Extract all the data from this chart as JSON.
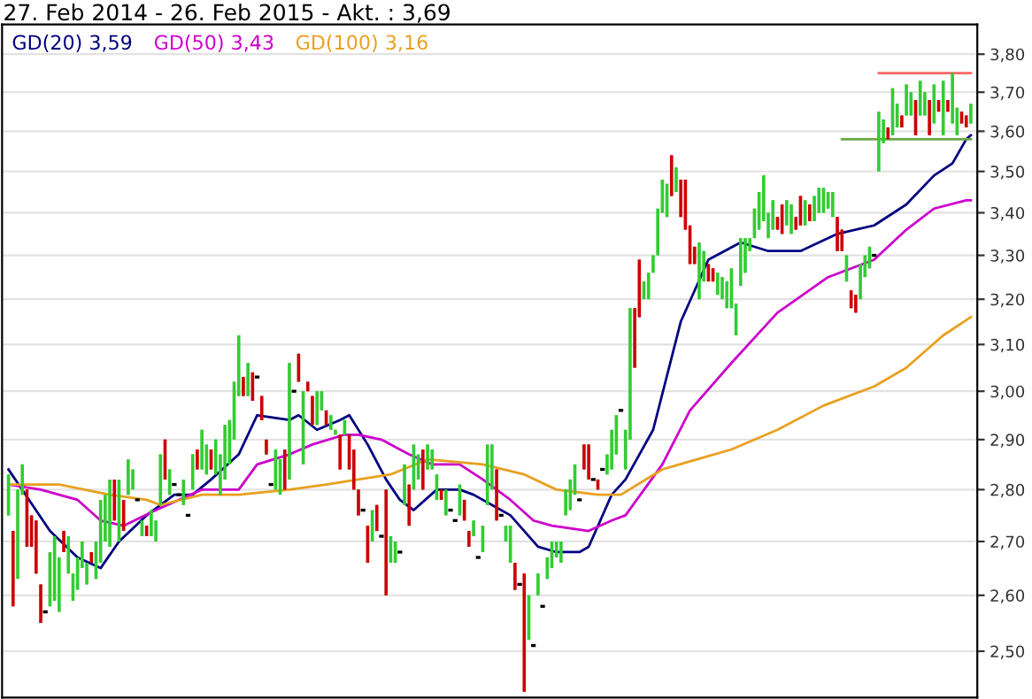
{
  "chart_data": {
    "type": "candlestick",
    "title": "27. Feb 2014 - 26. Feb 2015 - Akt. : 3,69",
    "categories": [
      null,
      null,
      null,
      null,
      null,
      null,
      null,
      null,
      null,
      null,
      null,
      null,
      null,
      null,
      null,
      null,
      null,
      null,
      null,
      null,
      null,
      null,
      null,
      null,
      null,
      null,
      null,
      null,
      null,
      null,
      null,
      null,
      null,
      null,
      null,
      null,
      null,
      null,
      null,
      null,
      null,
      null,
      null,
      null,
      null,
      null,
      null,
      null,
      null,
      null,
      null,
      null,
      null,
      null,
      null,
      null,
      null,
      null,
      null,
      null,
      null,
      null,
      null,
      null,
      null,
      null,
      null,
      null,
      null,
      null,
      null,
      null,
      null,
      null,
      null,
      null,
      null,
      null,
      null,
      null,
      null,
      null,
      null,
      null,
      null,
      null,
      null,
      null,
      null,
      null,
      null,
      null,
      null,
      null,
      null,
      null,
      null,
      null,
      null,
      null,
      null,
      null,
      null,
      null,
      null,
      null,
      null,
      null,
      null,
      null,
      null,
      null,
      null,
      null,
      null,
      null,
      null,
      null,
      null,
      null,
      null,
      null,
      null,
      null,
      null,
      null,
      null,
      null,
      null,
      null,
      null,
      null,
      null,
      null,
      null,
      null,
      null,
      null,
      null,
      null,
      null,
      null,
      null,
      null,
      null,
      null,
      null,
      null,
      null,
      null,
      null,
      null,
      null,
      null,
      null,
      null,
      null,
      null,
      null,
      null,
      null,
      null,
      null,
      null,
      null,
      null,
      null,
      null,
      null,
      null,
      null,
      null,
      null,
      null,
      null,
      null,
      null,
      null,
      null,
      null,
      null,
      null,
      null,
      null,
      null,
      null,
      null,
      null,
      null,
      null,
      null,
      null,
      null,
      null,
      null,
      null,
      null,
      null,
      null,
      null,
      null,
      null,
      null,
      null,
      null,
      null,
      null,
      null,
      null,
      null
    ],
    "ohlc": [
      [
        2.75,
        2.83,
        2.75,
        2.83
      ],
      [
        2.72,
        2.72,
        2.58,
        2.58
      ],
      [
        2.63,
        2.8,
        2.63,
        2.8
      ],
      [
        2.79,
        2.85,
        2.79,
        2.85
      ],
      [
        2.8,
        2.8,
        2.69,
        2.69
      ],
      [
        2.75,
        2.75,
        2.69,
        2.69
      ],
      [
        2.74,
        2.74,
        2.64,
        2.64
      ],
      [
        2.62,
        2.62,
        2.55,
        2.55
      ],
      [
        2.57,
        2.57,
        2.57,
        2.57
      ],
      [
        2.58,
        2.68,
        2.58,
        2.68
      ],
      [
        2.59,
        2.71,
        2.59,
        2.71
      ],
      [
        2.57,
        2.67,
        2.57,
        2.67
      ],
      [
        2.72,
        2.72,
        2.68,
        2.68
      ],
      [
        2.64,
        2.71,
        2.64,
        2.71
      ],
      [
        2.59,
        2.64,
        2.59,
        2.64
      ],
      [
        2.61,
        2.67,
        2.61,
        2.67
      ],
      [
        2.65,
        2.7,
        2.65,
        2.7
      ],
      [
        2.62,
        2.66,
        2.62,
        2.66
      ],
      [
        2.68,
        2.68,
        2.66,
        2.66
      ],
      [
        2.63,
        2.7,
        2.63,
        2.7
      ],
      [
        2.66,
        2.78,
        2.66,
        2.78
      ],
      [
        2.7,
        2.79,
        2.7,
        2.79
      ],
      [
        2.69,
        2.82,
        2.69,
        2.82
      ],
      [
        2.82,
        2.82,
        2.74,
        2.74
      ],
      [
        2.7,
        2.82,
        2.7,
        2.82
      ],
      [
        2.78,
        2.78,
        2.72,
        2.72
      ],
      [
        2.79,
        2.86,
        2.79,
        2.86
      ],
      [
        2.8,
        2.84,
        2.8,
        2.84
      ],
      [
        2.78,
        2.78,
        2.78,
        2.78
      ],
      [
        2.71,
        2.74,
        2.71,
        2.74
      ],
      [
        2.73,
        2.73,
        2.71,
        2.71
      ],
      [
        2.71,
        2.76,
        2.71,
        2.76
      ],
      [
        2.7,
        2.74,
        2.7,
        2.74
      ],
      [
        2.77,
        2.87,
        2.77,
        2.87
      ],
      [
        2.9,
        2.9,
        2.82,
        2.82
      ],
      [
        2.79,
        2.84,
        2.79,
        2.84
      ],
      [
        2.81,
        2.81,
        2.81,
        2.81
      ],
      [
        2.79,
        2.79,
        2.79,
        2.79
      ],
      [
        2.77,
        2.82,
        2.77,
        2.82
      ],
      [
        2.75,
        2.75,
        2.75,
        2.75
      ],
      [
        2.8,
        2.87,
        2.8,
        2.87
      ],
      [
        2.88,
        2.88,
        2.84,
        2.84
      ],
      [
        2.84,
        2.92,
        2.84,
        2.92
      ],
      [
        2.83,
        2.89,
        2.83,
        2.89
      ],
      [
        2.88,
        2.88,
        2.84,
        2.84
      ],
      [
        2.83,
        2.9,
        2.83,
        2.9
      ],
      [
        2.79,
        2.87,
        2.79,
        2.87
      ],
      [
        2.82,
        2.93,
        2.82,
        2.93
      ],
      [
        2.85,
        2.94,
        2.85,
        2.94
      ],
      [
        2.9,
        3.02,
        2.9,
        3.02
      ],
      [
        2.99,
        3.12,
        2.99,
        3.12
      ],
      [
        3.03,
        3.03,
        2.99,
        2.99
      ],
      [
        2.99,
        3.06,
        2.99,
        3.06
      ],
      [
        3.04,
        3.04,
        2.98,
        2.98
      ],
      [
        3.03,
        3.03,
        3.03,
        3.03
      ],
      [
        2.99,
        2.99,
        2.94,
        2.94
      ],
      [
        2.9,
        2.9,
        2.87,
        2.87
      ],
      [
        2.81,
        2.81,
        2.81,
        2.81
      ],
      [
        2.8,
        2.88,
        2.8,
        2.88
      ],
      [
        2.79,
        2.86,
        2.79,
        2.86
      ],
      [
        2.88,
        2.88,
        2.8,
        2.8
      ],
      [
        2.82,
        3.06,
        2.82,
        3.06
      ],
      [
        3.0,
        3.0,
        3.0,
        3.0
      ],
      [
        3.08,
        3.08,
        3.02,
        3.02
      ],
      [
        2.85,
        3.0,
        2.85,
        3.0
      ],
      [
        3.02,
        3.02,
        3.0,
        3.0
      ],
      [
        2.99,
        2.99,
        2.93,
        2.93
      ],
      [
        2.93,
        3.0,
        2.93,
        3.0
      ],
      [
        2.96,
        3.0,
        2.96,
        3.0
      ],
      [
        2.96,
        2.96,
        2.93,
        2.93
      ],
      [
        2.92,
        2.95,
        2.92,
        2.95
      ],
      [
        2.91,
        2.92,
        2.91,
        2.92
      ],
      [
        2.91,
        2.91,
        2.84,
        2.84
      ],
      [
        2.91,
        2.94,
        2.91,
        2.94
      ],
      [
        2.91,
        2.91,
        2.84,
        2.84
      ],
      [
        2.88,
        2.88,
        2.8,
        2.8
      ],
      [
        2.8,
        2.8,
        2.75,
        2.75
      ],
      [
        2.76,
        2.76,
        2.76,
        2.76
      ],
      [
        2.73,
        2.73,
        2.66,
        2.66
      ],
      [
        2.7,
        2.76,
        2.7,
        2.76
      ],
      [
        2.77,
        2.77,
        2.72,
        2.72
      ],
      [
        2.71,
        2.71,
        2.71,
        2.71
      ],
      [
        2.8,
        2.8,
        2.6,
        2.6
      ],
      [
        2.66,
        2.71,
        2.66,
        2.71
      ],
      [
        2.66,
        2.7,
        2.66,
        2.7
      ],
      [
        2.68,
        2.68,
        2.68,
        2.68
      ],
      [
        2.77,
        2.85,
        2.77,
        2.85
      ],
      [
        2.81,
        2.81,
        2.73,
        2.73
      ],
      [
        2.8,
        2.89,
        2.8,
        2.89
      ],
      [
        2.82,
        2.87,
        2.82,
        2.87
      ],
      [
        2.88,
        2.88,
        2.8,
        2.8
      ],
      [
        2.84,
        2.89,
        2.84,
        2.89
      ],
      [
        2.84,
        2.88,
        2.84,
        2.88
      ],
      [
        2.78,
        2.83,
        2.78,
        2.83
      ],
      [
        2.8,
        2.8,
        2.78,
        2.78
      ],
      [
        2.75,
        2.8,
        2.75,
        2.8
      ],
      [
        2.76,
        2.76,
        2.76,
        2.76
      ],
      [
        2.74,
        2.74,
        2.74,
        2.74
      ],
      [
        2.75,
        2.81,
        2.75,
        2.81
      ],
      [
        2.78,
        2.78,
        2.74,
        2.74
      ],
      [
        2.72,
        2.72,
        2.69,
        2.69
      ],
      [
        2.71,
        2.74,
        2.71,
        2.74
      ],
      [
        2.67,
        2.67,
        2.67,
        2.67
      ],
      [
        2.68,
        2.73,
        2.68,
        2.73
      ],
      [
        2.77,
        2.89,
        2.77,
        2.89
      ],
      [
        2.8,
        2.89,
        2.8,
        2.89
      ],
      [
        2.84,
        2.84,
        2.74,
        2.74
      ],
      [
        2.75,
        2.75,
        2.75,
        2.75
      ],
      [
        2.7,
        2.73,
        2.7,
        2.73
      ],
      [
        2.66,
        2.73,
        2.66,
        2.73
      ],
      [
        2.66,
        2.66,
        2.61,
        2.61
      ],
      [
        2.62,
        2.62,
        2.62,
        2.62
      ],
      [
        2.64,
        2.64,
        2.43,
        2.43
      ],
      [
        2.52,
        2.6,
        2.52,
        2.6
      ],
      [
        2.51,
        2.51,
        2.51,
        2.51
      ],
      [
        2.6,
        2.64,
        2.6,
        2.64
      ],
      [
        2.58,
        2.58,
        2.58,
        2.58
      ],
      [
        2.63,
        2.67,
        2.63,
        2.67
      ],
      [
        2.65,
        2.7,
        2.65,
        2.7
      ],
      [
        2.67,
        2.7,
        2.67,
        2.7
      ],
      [
        2.66,
        2.7,
        2.66,
        2.7
      ],
      [
        2.75,
        2.8,
        2.75,
        2.8
      ],
      [
        2.76,
        2.82,
        2.76,
        2.82
      ],
      [
        2.79,
        2.85,
        2.79,
        2.85
      ],
      [
        2.78,
        2.78,
        2.78,
        2.78
      ],
      [
        2.89,
        2.89,
        2.84,
        2.84
      ],
      [
        2.89,
        2.89,
        2.82,
        2.82
      ],
      [
        2.82,
        2.82,
        2.82,
        2.82
      ],
      [
        2.82,
        2.82,
        2.8,
        2.8
      ],
      [
        2.84,
        2.84,
        2.84,
        2.84
      ],
      [
        2.83,
        2.87,
        2.83,
        2.87
      ],
      [
        2.84,
        2.92,
        2.84,
        2.92
      ],
      [
        2.87,
        2.95,
        2.87,
        2.95
      ],
      [
        2.96,
        2.96,
        2.96,
        2.96
      ],
      [
        2.84,
        2.92,
        2.84,
        2.92
      ],
      [
        2.9,
        3.18,
        2.9,
        3.18
      ],
      [
        3.18,
        3.18,
        3.05,
        3.05
      ],
      [
        3.29,
        3.29,
        3.16,
        3.16
      ],
      [
        3.2,
        3.24,
        3.2,
        3.24
      ],
      [
        3.2,
        3.26,
        3.2,
        3.26
      ],
      [
        3.26,
        3.3,
        3.26,
        3.3
      ],
      [
        3.3,
        3.41,
        3.3,
        3.41
      ],
      [
        3.4,
        3.48,
        3.4,
        3.48
      ],
      [
        3.39,
        3.47,
        3.39,
        3.47
      ],
      [
        3.54,
        3.54,
        3.44,
        3.44
      ],
      [
        3.45,
        3.51,
        3.45,
        3.51
      ],
      [
        3.48,
        3.48,
        3.39,
        3.39
      ],
      [
        3.48,
        3.48,
        3.36,
        3.36
      ],
      [
        3.37,
        3.37,
        3.28,
        3.28
      ],
      [
        3.32,
        3.32,
        3.28,
        3.28
      ],
      [
        3.2,
        3.33,
        3.2,
        3.33
      ],
      [
        3.24,
        3.31,
        3.24,
        3.31
      ],
      [
        3.28,
        3.28,
        3.24,
        3.24
      ],
      [
        3.27,
        3.27,
        3.24,
        3.24
      ],
      [
        3.21,
        3.26,
        3.21,
        3.26
      ],
      [
        3.2,
        3.25,
        3.2,
        3.25
      ],
      [
        3.18,
        3.24,
        3.18,
        3.24
      ],
      [
        3.18,
        3.27,
        3.18,
        3.27
      ],
      [
        3.12,
        3.19,
        3.12,
        3.19
      ],
      [
        3.23,
        3.34,
        3.23,
        3.34
      ],
      [
        3.26,
        3.34,
        3.26,
        3.34
      ],
      [
        3.31,
        3.34,
        3.31,
        3.34
      ],
      [
        3.34,
        3.41,
        3.34,
        3.41
      ],
      [
        3.36,
        3.45,
        3.36,
        3.45
      ],
      [
        3.38,
        3.49,
        3.38,
        3.49
      ],
      [
        3.34,
        3.4,
        3.34,
        3.4
      ],
      [
        3.36,
        3.43,
        3.36,
        3.43
      ],
      [
        3.39,
        3.39,
        3.36,
        3.36
      ],
      [
        3.42,
        3.42,
        3.35,
        3.35
      ],
      [
        3.37,
        3.43,
        3.37,
        3.43
      ],
      [
        3.35,
        3.42,
        3.35,
        3.42
      ],
      [
        3.39,
        3.39,
        3.36,
        3.36
      ],
      [
        3.44,
        3.44,
        3.37,
        3.37
      ],
      [
        3.37,
        3.43,
        3.37,
        3.43
      ],
      [
        3.42,
        3.42,
        3.38,
        3.38
      ],
      [
        3.38,
        3.44,
        3.38,
        3.44
      ],
      [
        3.4,
        3.46,
        3.4,
        3.46
      ],
      [
        3.4,
        3.46,
        3.4,
        3.46
      ],
      [
        3.41,
        3.45,
        3.41,
        3.45
      ],
      [
        3.39,
        3.45,
        3.39,
        3.45
      ],
      [
        3.39,
        3.39,
        3.31,
        3.31
      ],
      [
        3.36,
        3.36,
        3.31,
        3.31
      ],
      [
        3.24,
        3.3,
        3.24,
        3.3
      ],
      [
        3.22,
        3.22,
        3.18,
        3.18
      ],
      [
        3.21,
        3.21,
        3.17,
        3.17
      ],
      [
        3.2,
        3.28,
        3.2,
        3.28
      ],
      [
        3.25,
        3.3,
        3.25,
        3.3
      ],
      [
        3.27,
        3.32,
        3.27,
        3.32
      ],
      [
        3.3,
        3.3,
        3.3,
        3.3
      ],
      [
        3.5,
        3.65,
        3.5,
        3.65
      ],
      [
        3.57,
        3.63,
        3.57,
        3.63
      ],
      [
        3.61,
        3.61,
        3.58,
        3.58
      ],
      [
        3.59,
        3.71,
        3.59,
        3.71
      ],
      [
        3.61,
        3.67,
        3.61,
        3.67
      ],
      [
        3.64,
        3.64,
        3.61,
        3.61
      ],
      [
        3.64,
        3.72,
        3.64,
        3.72
      ],
      [
        3.64,
        3.7,
        3.64,
        3.7
      ],
      [
        3.68,
        3.68,
        3.59,
        3.59
      ],
      [
        3.64,
        3.73,
        3.64,
        3.73
      ],
      [
        3.64,
        3.7,
        3.64,
        3.7
      ],
      [
        3.68,
        3.68,
        3.59,
        3.59
      ],
      [
        3.62,
        3.72,
        3.62,
        3.72
      ],
      [
        3.68,
        3.68,
        3.65,
        3.65
      ],
      [
        3.59,
        3.73,
        3.59,
        3.73
      ],
      [
        3.68,
        3.68,
        3.65,
        3.65
      ],
      [
        3.62,
        3.75,
        3.62,
        3.75
      ],
      [
        3.59,
        3.66,
        3.59,
        3.66
      ],
      [
        3.65,
        3.65,
        3.62,
        3.62
      ],
      [
        3.64,
        3.64,
        3.61,
        3.61
      ],
      [
        3.62,
        3.67,
        3.62,
        3.67
      ]
    ],
    "series": [
      {
        "type": "line",
        "name": "GD(20) 3,59",
        "color": "#000080",
        "values": [
          2.84,
          null,
          null,
          null,
          null,
          null,
          null,
          null,
          null,
          2.72,
          null,
          null,
          null,
          null,
          null,
          2.67,
          null,
          null,
          null,
          null,
          2.65,
          null,
          null,
          null,
          2.7,
          null,
          null,
          null,
          null,
          null,
          2.75,
          null,
          null,
          null,
          null,
          null,
          2.79,
          null,
          null,
          null,
          2.79,
          null,
          null,
          null,
          2.82,
          null,
          null,
          null,
          null,
          null,
          2.87,
          null,
          null,
          null,
          2.95,
          null,
          null,
          null,
          null,
          null,
          null,
          2.94,
          null,
          2.95,
          null,
          null,
          null,
          2.92,
          null,
          null,
          null,
          null,
          2.94,
          null,
          2.95,
          null,
          null,
          null,
          2.89,
          null,
          null,
          null,
          2.82,
          null,
          null,
          2.78,
          null,
          null,
          2.76,
          null,
          null,
          null,
          null,
          2.8,
          null,
          null,
          null,
          null,
          2.8,
          null,
          null,
          2.79,
          null,
          null,
          null,
          2.77,
          null,
          null,
          null,
          2.75,
          null,
          null,
          2.72,
          null,
          null,
          2.69,
          null,
          null,
          null,
          2.68,
          null,
          null,
          null,
          null,
          2.68,
          null,
          2.69,
          null,
          null,
          null,
          null,
          2.79,
          null,
          null,
          2.82,
          null,
          null,
          null,
          null,
          null,
          2.92,
          null,
          null,
          null,
          null,
          null,
          3.15,
          null,
          null,
          null,
          null,
          null,
          3.29,
          null,
          null,
          null,
          null,
          null,
          null,
          3.33,
          null,
          null,
          null,
          null,
          null,
          3.31,
          null,
          null,
          null,
          null,
          null,
          null,
          3.31,
          null,
          null,
          null,
          null,
          null,
          null,
          null,
          3.35,
          null,
          null,
          null,
          null,
          null,
          null,
          null,
          3.37,
          null,
          null,
          null,
          null,
          null,
          null,
          3.42,
          null,
          null,
          null,
          null,
          null,
          3.49,
          null,
          null,
          null,
          3.52,
          null,
          null,
          3.58,
          3.59
        ]
      },
      {
        "type": "line",
        "name": "GD(50) 3,43",
        "color": "#cc00cc",
        "values": [
          2.81,
          null,
          null,
          null,
          null,
          null,
          null,
          2.8,
          null,
          null,
          null,
          null,
          null,
          null,
          null,
          2.78,
          null,
          null,
          null,
          null,
          2.74,
          null,
          null,
          null,
          null,
          2.73,
          null,
          null,
          null,
          null,
          null,
          null,
          2.76,
          null,
          null,
          null,
          null,
          2.78,
          null,
          null,
          null,
          null,
          2.8,
          null,
          null,
          null,
          null,
          null,
          null,
          null,
          2.8,
          null,
          null,
          null,
          2.85,
          null,
          null,
          null,
          null,
          null,
          null,
          2.87,
          null,
          null,
          null,
          null,
          2.89,
          null,
          null,
          null,
          null,
          null,
          null,
          2.91,
          null,
          null,
          2.91,
          null,
          null,
          null,
          null,
          2.9,
          null,
          null,
          null,
          null,
          null,
          2.87,
          null,
          null,
          null,
          null,
          2.85,
          null,
          null,
          null,
          null,
          null,
          2.85,
          null,
          null,
          null,
          null,
          2.82,
          null,
          null,
          null,
          null,
          null,
          2.78,
          null,
          null,
          null,
          null,
          2.74,
          null,
          null,
          null,
          2.73,
          null,
          null,
          null,
          null,
          null,
          null,
          null,
          2.72,
          null,
          null,
          null,
          null,
          2.74,
          null,
          null,
          2.75,
          null,
          null,
          null,
          null,
          null,
          null,
          null,
          2.85,
          null,
          null,
          null,
          null,
          null,
          2.96,
          null,
          null,
          null,
          null,
          null,
          null,
          null,
          null,
          3.06,
          null,
          null,
          null,
          null,
          null,
          null,
          null,
          null,
          null,
          3.17,
          null,
          null,
          null,
          null,
          null,
          null,
          null,
          null,
          null,
          null,
          3.25,
          null,
          null,
          null,
          null,
          null,
          null,
          null,
          null,
          null,
          3.29,
          null,
          null,
          null,
          null,
          null,
          null,
          3.36,
          null,
          null,
          null,
          null,
          null,
          3.41,
          null,
          null,
          null,
          null,
          null,
          null,
          3.43,
          3.43
        ]
      },
      {
        "type": "line",
        "name": "GD(100) 3,16",
        "color": "#e8a020",
        "values": [
          2.81,
          null,
          null,
          null,
          null,
          null,
          null,
          null,
          null,
          null,
          null,
          2.81,
          null,
          null,
          null,
          null,
          null,
          null,
          null,
          null,
          null,
          null,
          2.79,
          null,
          null,
          null,
          null,
          null,
          null,
          null,
          2.78,
          null,
          null,
          2.77,
          null,
          null,
          null,
          null,
          null,
          null,
          null,
          null,
          2.79,
          null,
          null,
          null,
          null,
          null,
          null,
          null,
          2.79,
          null,
          null,
          null,
          null,
          null,
          null,
          null,
          null,
          null,
          null,
          2.8,
          null,
          null,
          null,
          null,
          null,
          null,
          null,
          2.81,
          null,
          null,
          null,
          null,
          null,
          null,
          2.82,
          null,
          null,
          null,
          null,
          null,
          null,
          2.83,
          null,
          null,
          null,
          null,
          null,
          null,
          null,
          2.86,
          null,
          null,
          null,
          null,
          null,
          null,
          null,
          null,
          null,
          null,
          null,
          2.85,
          null,
          null,
          null,
          null,
          null,
          null,
          null,
          null,
          2.83,
          null,
          null,
          null,
          null,
          null,
          null,
          2.8,
          null,
          null,
          null,
          null,
          null,
          null,
          null,
          null,
          2.79,
          null,
          null,
          null,
          null,
          2.79,
          null,
          null,
          null,
          null,
          null,
          null,
          null,
          null,
          2.84,
          null,
          null,
          null,
          null,
          null,
          null,
          null,
          null,
          null,
          null,
          null,
          null,
          null,
          null,
          2.88,
          null,
          null,
          null,
          null,
          null,
          null,
          null,
          null,
          null,
          2.92,
          null,
          null,
          null,
          null,
          null,
          null,
          null,
          null,
          null,
          2.97,
          null,
          null,
          null,
          null,
          null,
          null,
          null,
          null,
          null,
          null,
          3.01,
          null,
          null,
          null,
          null,
          null,
          null,
          3.05,
          null,
          null,
          null,
          null,
          null,
          null,
          null,
          3.12,
          null,
          null,
          null,
          null,
          null,
          3.16
        ]
      },
      {
        "type": "line",
        "color": "#ff6666",
        "values": [
          null,
          null,
          null,
          null,
          null,
          null,
          null,
          null,
          null,
          null,
          null,
          null,
          null,
          null,
          null,
          null,
          null,
          null,
          null,
          null,
          null,
          null,
          null,
          null,
          null,
          null,
          null,
          null,
          null,
          null,
          null,
          null,
          null,
          null,
          null,
          null,
          null,
          null,
          null,
          null,
          null,
          null,
          null,
          null,
          null,
          null,
          null,
          null,
          null,
          null,
          null,
          null,
          null,
          null,
          null,
          null,
          null,
          null,
          null,
          null,
          null,
          null,
          null,
          null,
          null,
          null,
          null,
          null,
          null,
          null,
          null,
          null,
          null,
          null,
          null,
          null,
          null,
          null,
          null,
          null,
          null,
          null,
          null,
          null,
          null,
          null,
          null,
          null,
          null,
          null,
          null,
          null,
          null,
          null,
          null,
          null,
          null,
          null,
          null,
          null,
          null,
          null,
          null,
          null,
          null,
          null,
          null,
          null,
          null,
          null,
          null,
          null,
          null,
          null,
          null,
          null,
          null,
          null,
          null,
          null,
          null,
          null,
          null,
          null,
          null,
          null,
          null,
          null,
          null,
          null,
          null,
          null,
          null,
          null,
          null,
          null,
          null,
          null,
          null,
          null,
          null,
          null,
          null,
          null,
          null,
          null,
          null,
          null,
          null,
          null,
          null,
          null,
          null,
          null,
          null,
          null,
          null,
          null,
          null,
          null,
          null,
          null,
          null,
          null,
          null,
          null,
          null,
          null,
          null,
          null,
          null,
          null,
          null,
          null,
          null,
          null,
          null,
          null,
          null,
          null,
          null,
          null,
          null,
          null,
          null,
          null,
          null,
          null,
          null,
          3.75,
          3.75,
          3.75,
          3.75,
          3.75,
          3.75,
          3.75,
          3.75,
          3.75,
          3.75,
          3.75,
          3.75,
          3.75,
          3.75,
          3.75,
          3.75,
          3.75,
          3.75,
          3.75,
          3.75,
          3.75
        ]
      },
      {
        "type": "line",
        "color": "#66aa44",
        "values": [
          null,
          null,
          null,
          null,
          null,
          null,
          null,
          null,
          null,
          null,
          null,
          null,
          null,
          null,
          null,
          null,
          null,
          null,
          null,
          null,
          null,
          null,
          null,
          null,
          null,
          null,
          null,
          null,
          null,
          null,
          null,
          null,
          null,
          null,
          null,
          null,
          null,
          null,
          null,
          null,
          null,
          null,
          null,
          null,
          null,
          null,
          null,
          null,
          null,
          null,
          null,
          null,
          null,
          null,
          null,
          null,
          null,
          null,
          null,
          null,
          null,
          null,
          null,
          null,
          null,
          null,
          null,
          null,
          null,
          null,
          null,
          null,
          null,
          null,
          null,
          null,
          null,
          null,
          null,
          null,
          null,
          null,
          null,
          null,
          null,
          null,
          null,
          null,
          null,
          null,
          null,
          null,
          null,
          null,
          null,
          null,
          null,
          null,
          null,
          null,
          null,
          null,
          null,
          null,
          null,
          null,
          null,
          null,
          null,
          null,
          null,
          null,
          null,
          null,
          null,
          null,
          null,
          null,
          null,
          null,
          null,
          null,
          null,
          null,
          null,
          null,
          null,
          null,
          null,
          null,
          null,
          null,
          null,
          null,
          null,
          null,
          null,
          null,
          null,
          null,
          null,
          null,
          null,
          null,
          null,
          null,
          null,
          null,
          null,
          null,
          null,
          null,
          null,
          null,
          null,
          null,
          null,
          null,
          null,
          null,
          null,
          null,
          null,
          null,
          null,
          null,
          null,
          null,
          null,
          null,
          null,
          null,
          null,
          null,
          null,
          null,
          null,
          null,
          null,
          null,
          null,
          3.58,
          3.58,
          3.58,
          3.58,
          3.58,
          3.58,
          3.58,
          3.58,
          3.58,
          3.58,
          3.58,
          3.58,
          3.58,
          3.58,
          3.58,
          3.58,
          3.58,
          3.58,
          3.58,
          3.58,
          3.58,
          3.58,
          3.58,
          3.58,
          3.58,
          3.58,
          3.58,
          3.58,
          3.58
        ]
      }
    ],
    "log": true,
    "ylim": [
      2.42,
      3.88
    ],
    "yticks": [
      {
        "value": 2.5,
        "label": "2,50"
      },
      {
        "value": 2.6,
        "label": "2,60"
      },
      {
        "value": 2.7,
        "label": "2,70"
      },
      {
        "value": 2.8,
        "label": "2,80"
      },
      {
        "value": 2.9,
        "label": "2,90"
      },
      {
        "value": 3.0,
        "label": "3,00"
      },
      {
        "value": 3.1,
        "label": "3,10"
      },
      {
        "value": 3.2,
        "label": "3,20"
      },
      {
        "value": 3.3,
        "label": "3,30"
      },
      {
        "value": 3.4,
        "label": "3,40"
      },
      {
        "value": 3.5,
        "label": "3,50"
      },
      {
        "value": 3.6,
        "label": "3,60"
      },
      {
        "value": 3.7,
        "label": "3,70"
      },
      {
        "value": 3.8,
        "label": "3,80"
      }
    ],
    "grid": "y",
    "legend": "top left"
  }
}
